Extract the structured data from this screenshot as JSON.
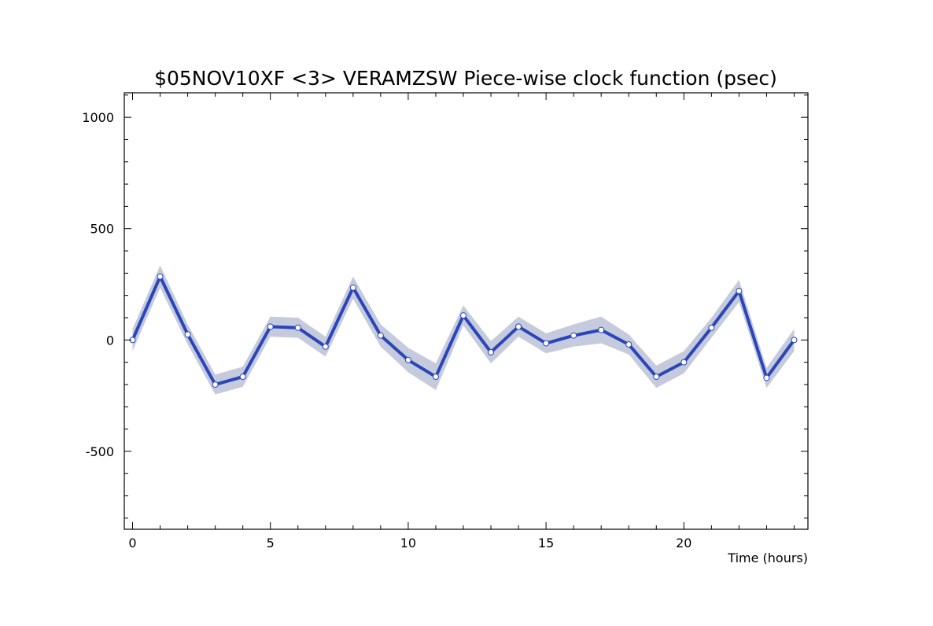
{
  "chart_data": {
    "type": "line",
    "title": "$05NOV10XF <3>  VERAMZSW  Piece-wise clock function (psec)",
    "xlabel": "Time (hours)",
    "ylabel": "",
    "xlim": [
      -0.3,
      24.5
    ],
    "ylim": [
      -850,
      1110
    ],
    "x_ticks": [
      0,
      5,
      10,
      15,
      20
    ],
    "y_ticks": [
      -500,
      0,
      500,
      1000
    ],
    "x_minor_step": 1,
    "y_minor_step": 100,
    "grid": false,
    "colors": {
      "line": "#2b46b8",
      "band": "#c5cadd",
      "marker_fill": "#ffffff",
      "marker_edge": "#2b46b8",
      "axes": "#000000"
    },
    "series": [
      {
        "x": [
          0,
          1,
          2,
          3,
          4,
          5,
          6,
          7,
          8,
          9,
          10,
          11,
          12,
          13,
          14,
          15,
          16,
          17,
          18,
          19,
          20,
          21,
          22,
          23,
          24
        ],
        "y": [
          0,
          285,
          25,
          -200,
          -165,
          60,
          55,
          -30,
          235,
          20,
          -90,
          -165,
          110,
          -55,
          60,
          -15,
          20,
          45,
          -20,
          -165,
          -100,
          55,
          220,
          -170,
          0
        ],
        "error": [
          50,
          50,
          45,
          45,
          45,
          45,
          45,
          45,
          50,
          50,
          55,
          60,
          45,
          50,
          45,
          45,
          50,
          60,
          45,
          50,
          50,
          45,
          50,
          45,
          50
        ]
      }
    ]
  }
}
